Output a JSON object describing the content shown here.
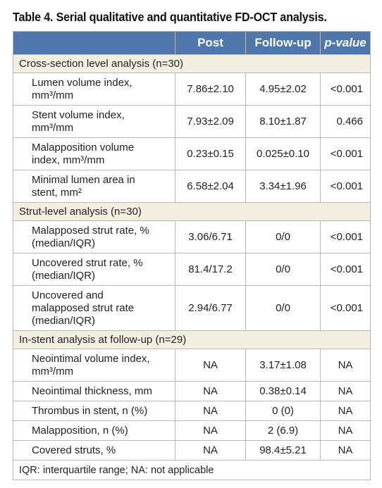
{
  "title": "Table 4. Serial qualitative and quantitative FD-OCT analysis.",
  "headers": {
    "col1": "",
    "post": "Post",
    "followup": "Follow-up",
    "pvalue": "p-value"
  },
  "sections": [
    {
      "label": "Cross-section level analysis (n=30)",
      "rows": [
        {
          "label_l1": "Lumen volume index,",
          "label_l2": "mm³/mm",
          "post": "7.86±2.10",
          "followup": "4.95±2.02",
          "p": "<0.001"
        },
        {
          "label_l1": "Stent volume index,",
          "label_l2": "mm³/mm",
          "post": "7.93±2.09",
          "followup": "8.10±1.87",
          "p": "0.466"
        },
        {
          "label_l1": "Malapposition volume",
          "label_l2": "index, mm³/mm",
          "post": "0.23±0.15",
          "followup": "0.025±0.10",
          "p": "<0.001"
        },
        {
          "label_l1": "Minimal lumen area in",
          "label_l2": "stent, mm²",
          "post": "6.58±2.04",
          "followup": "3.34±1.96",
          "p": "<0.001"
        }
      ]
    },
    {
      "label": "Strut-level analysis (n=30)",
      "rows": [
        {
          "label_l1": "Malapposed strut rate, %",
          "label_l2": "(median/IQR)",
          "post": "3.06/6.71",
          "followup": "0/0",
          "p": "<0.001"
        },
        {
          "label_l1": "Uncovered strut rate, %",
          "label_l2": "(median/IQR)",
          "post": "81.4/17.2",
          "followup": "0/0",
          "p": "<0.001"
        },
        {
          "label_l1": "Uncovered and",
          "label_l2": "malapposed strut rate",
          "label_l3": "(median/IQR)",
          "post": "2.94/6.77",
          "followup": "0/0",
          "p": "<0.001"
        }
      ]
    },
    {
      "label": "In-stent analysis at follow-up (n=29)",
      "rows": [
        {
          "label_l1": "Neointimal volume index,",
          "label_l2": "mm³/mm",
          "post": "NA",
          "followup": "3.17±1.08",
          "p": "NA"
        },
        {
          "label_l1": "Neointimal thickness, mm",
          "post": "NA",
          "followup": "0.38±0.14",
          "p": "NA"
        },
        {
          "label_l1": "Thrombus in stent, n (%)",
          "post": "NA",
          "followup": "0 (0)",
          "p": "NA"
        },
        {
          "label_l1": "Malapposition, n (%)",
          "post": "NA",
          "followup": "2 (6.9)",
          "p": "NA"
        },
        {
          "label_l1": "Covered struts, %",
          "post": "NA",
          "followup": "98.4±5.21",
          "p": "NA"
        }
      ]
    }
  ],
  "footer": "IQR: interquartile range; NA: not applicable"
}
